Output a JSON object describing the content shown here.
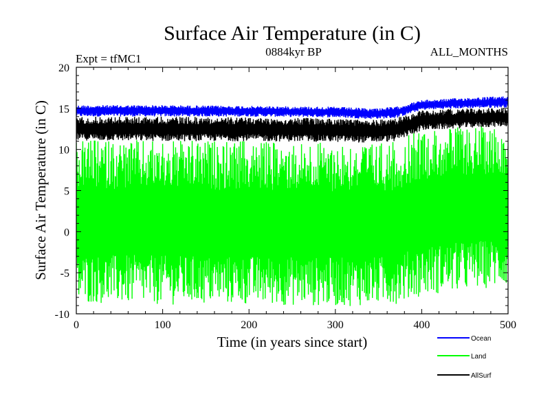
{
  "chart_data": {
    "type": "line",
    "title": "Surface Air Temperature (in C)",
    "subtitle_left": "Expt = tfMC1",
    "subtitle_center": "0884kyr BP",
    "subtitle_right": "ALL_MONTHS",
    "xlabel": "Time (in years since start)",
    "ylabel": "Surface Air Temperature (in C)",
    "xlim": [
      0,
      500
    ],
    "ylim": [
      -10,
      20
    ],
    "x_ticks": [
      0,
      100,
      200,
      300,
      400,
      500
    ],
    "y_ticks": [
      20,
      15,
      10,
      5,
      0,
      -5,
      -10
    ],
    "legend_position": "bottom-right",
    "series": [
      {
        "name": "Ocean",
        "color": "#0000ff",
        "band": {
          "x": [
            0,
            100,
            200,
            300,
            340,
            370,
            400,
            450,
            500
          ],
          "min": [
            14.0,
            14.0,
            14.0,
            13.9,
            13.7,
            13.8,
            14.8,
            15.0,
            15.1
          ],
          "max": [
            15.4,
            15.4,
            15.3,
            15.2,
            15.0,
            15.2,
            16.0,
            16.3,
            16.5
          ]
        }
      },
      {
        "name": "Land",
        "color": "#00ff00",
        "band": {
          "x": [
            0,
            100,
            200,
            300,
            340,
            370,
            400,
            450,
            500
          ],
          "min": [
            -8.7,
            -8.9,
            -8.9,
            -9.1,
            -9.0,
            -8.8,
            -7.8,
            -7.2,
            -6.6
          ],
          "max": [
            11.2,
            11.1,
            11.0,
            10.9,
            10.8,
            11.0,
            12.5,
            12.8,
            13.0
          ]
        }
      },
      {
        "name": "AllSurf",
        "color": "#000000",
        "band": {
          "x": [
            0,
            100,
            200,
            300,
            340,
            370,
            400,
            450,
            500
          ],
          "min": [
            11.1,
            11.0,
            11.0,
            10.9,
            10.8,
            11.0,
            12.3,
            12.6,
            12.8
          ],
          "max": [
            14.0,
            14.0,
            13.9,
            13.8,
            13.6,
            13.8,
            14.8,
            15.0,
            15.1
          ]
        }
      }
    ]
  }
}
